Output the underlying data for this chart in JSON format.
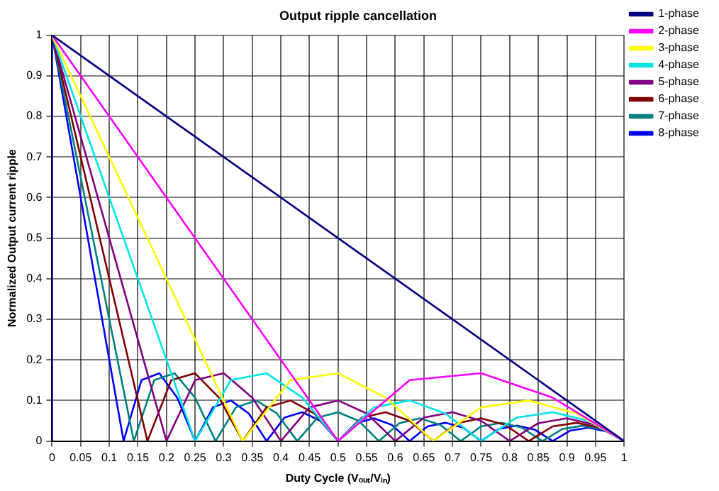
{
  "chart_data": {
    "type": "line",
    "title": "Output ripple cancellation",
    "xlabel": "Duty Cycle (Vₒᵤₜ/Vᵢₙ)",
    "ylabel": "Normalized Output current ripple",
    "xlim": [
      0,
      1
    ],
    "xticks": [
      0,
      0.05,
      0.1,
      0.15,
      0.2,
      0.25,
      0.3,
      0.35,
      0.4,
      0.45,
      0.5,
      0.55,
      0.6,
      0.65,
      0.7,
      0.75,
      0.8,
      0.85,
      0.9,
      0.95,
      1
    ],
    "ylim": [
      0,
      1
    ],
    "yticks": [
      0,
      0.1,
      0.2,
      0.3,
      0.4,
      0.5,
      0.6,
      0.7,
      0.8,
      0.9,
      1
    ],
    "grid": true,
    "legend": "top right",
    "marker": "none",
    "line_style": "solid",
    "series": [
      {
        "name": "1-phase",
        "color": "#000080",
        "x": [
          0,
          1
        ],
        "values": [
          1,
          0
        ]
      },
      {
        "name": "2-phase",
        "color": "#ff00ff",
        "x": [
          0,
          0.5,
          0.625,
          0.75,
          0.875,
          1
        ],
        "values": [
          1,
          0,
          0.15,
          0.167,
          0.107,
          0
        ]
      },
      {
        "name": "3-phase",
        "color": "#ffff00",
        "x": [
          0,
          0.3333,
          0.4167,
          0.5,
          0.5833,
          0.6667,
          0.75,
          0.8333,
          0.9167,
          1
        ],
        "values": [
          1,
          0,
          0.15,
          0.167,
          0.107,
          0,
          0.083,
          0.1,
          0.068,
          0
        ]
      },
      {
        "name": "4-phase",
        "color": "#00e5e5",
        "x": [
          0,
          0.25,
          0.3125,
          0.375,
          0.4375,
          0.5,
          0.5625,
          0.625,
          0.6875,
          0.75,
          0.8125,
          0.875,
          0.9375,
          1
        ],
        "values": [
          1,
          0,
          0.15,
          0.167,
          0.107,
          0,
          0.083,
          0.1,
          0.068,
          0,
          0.058,
          0.071,
          0.05,
          0
        ]
      },
      {
        "name": "5-phase",
        "color": "#800080",
        "x": [
          0,
          0.2,
          0.25,
          0.3,
          0.35,
          0.4,
          0.45,
          0.5,
          0.55,
          0.6,
          0.65,
          0.7,
          0.75,
          0.8,
          0.85,
          0.9,
          0.95,
          1
        ],
        "values": [
          1,
          0,
          0.15,
          0.167,
          0.107,
          0,
          0.083,
          0.1,
          0.068,
          0,
          0.058,
          0.071,
          0.05,
          0,
          0.044,
          0.056,
          0.04,
          0
        ]
      },
      {
        "name": "6-phase",
        "color": "#800000",
        "x": [
          0,
          0.1667,
          0.2083,
          0.25,
          0.2917,
          0.3333,
          0.375,
          0.4167,
          0.4583,
          0.5,
          0.5417,
          0.5833,
          0.625,
          0.6667,
          0.7083,
          0.75,
          0.7917,
          0.8333,
          0.875,
          0.9167,
          0.9583,
          1
        ],
        "values": [
          1,
          0,
          0.15,
          0.167,
          0.107,
          0,
          0.083,
          0.1,
          0.068,
          0,
          0.058,
          0.071,
          0.05,
          0,
          0.044,
          0.056,
          0.04,
          0,
          0.036,
          0.045,
          0.033,
          0
        ]
      },
      {
        "name": "7-phase",
        "color": "#008080",
        "x": [
          0,
          0.1429,
          0.1786,
          0.2143,
          0.25,
          0.2857,
          0.3214,
          0.3571,
          0.3929,
          0.4286,
          0.4643,
          0.5,
          0.5357,
          0.5714,
          0.6071,
          0.6429,
          0.6786,
          0.7143,
          0.75,
          0.7857,
          0.8214,
          0.8571,
          0.8929,
          0.9286,
          0.9643,
          1
        ],
        "values": [
          1,
          0,
          0.15,
          0.167,
          0.107,
          0,
          0.083,
          0.1,
          0.068,
          0,
          0.058,
          0.071,
          0.05,
          0,
          0.044,
          0.056,
          0.04,
          0,
          0.036,
          0.045,
          0.033,
          0,
          0.03,
          0.038,
          0.028,
          0
        ]
      },
      {
        "name": "8-phase",
        "color": "#0000ff",
        "x": [
          0,
          0,
          0.125,
          0.1563,
          0.1875,
          0.2188,
          0.25,
          0.2813,
          0.3125,
          0.3438,
          0.375,
          0.4063,
          0.4375,
          0.4688,
          0.5,
          0.5313,
          0.5625,
          0.5938,
          0.625,
          0.6563,
          0.6875,
          0.7188,
          0.75,
          0.7813,
          0.8125,
          0.8438,
          0.875,
          0.9063,
          0.9375,
          0.9688,
          1
        ],
        "values": [
          0,
          1,
          0,
          0.15,
          0.167,
          0.107,
          0,
          0.083,
          0.1,
          0.068,
          0,
          0.058,
          0.071,
          0.05,
          0,
          0.044,
          0.056,
          0.04,
          0,
          0.036,
          0.045,
          0.033,
          0,
          0.03,
          0.038,
          0.028,
          0,
          0.026,
          0.033,
          0.024,
          0
        ]
      }
    ]
  }
}
